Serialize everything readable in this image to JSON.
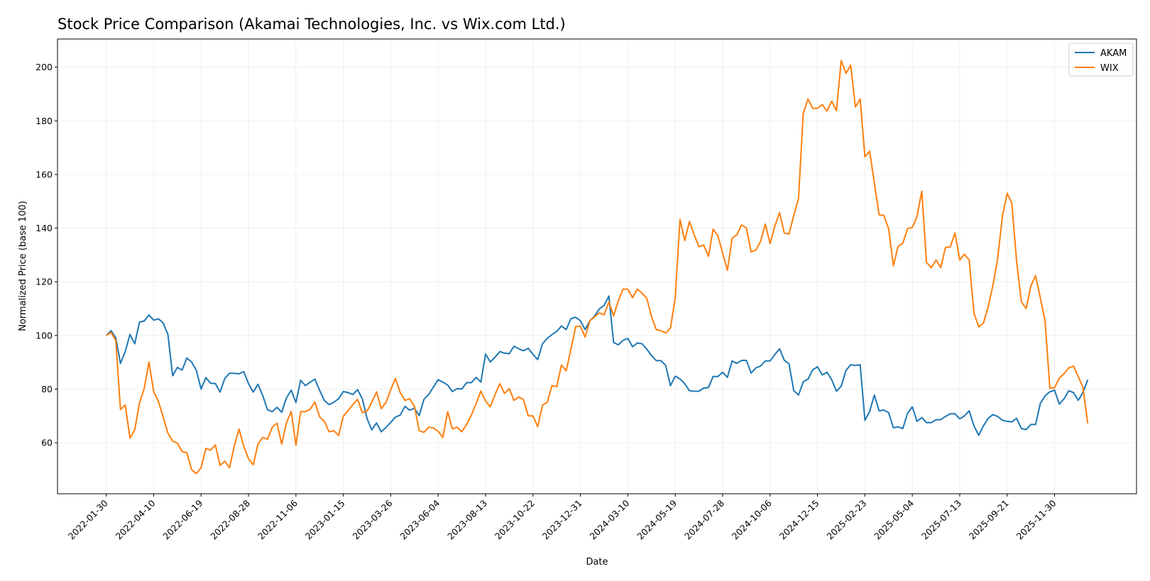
{
  "chart_data": {
    "type": "line",
    "title": "Stock Price Comparison (Akamai Technologies, Inc. vs Wix.com Ltd.)",
    "xlabel": "Date",
    "ylabel": "Normalized Price (base 100)",
    "xlim": [
      "2021-11-19",
      "2026-03-31"
    ],
    "ylim": [
      41,
      210.5
    ],
    "grid": true,
    "legend": "top-right",
    "x_ticks": [
      "2022-01-30",
      "2022-04-10",
      "2022-06-19",
      "2022-08-28",
      "2022-11-06",
      "2023-01-15",
      "2023-03-26",
      "2023-06-04",
      "2023-08-13",
      "2023-10-22",
      "2023-12-31",
      "2024-03-10",
      "2024-05-19",
      "2024-07-28",
      "2024-10-06",
      "2024-12-15",
      "2025-02-23",
      "2025-05-04",
      "2025-07-13",
      "2025-09-21",
      "2025-11-30"
    ],
    "y_ticks": [
      60,
      80,
      100,
      120,
      140,
      160,
      180,
      200
    ],
    "x": [
      "2022-01-30",
      "2022-02-06",
      "2022-02-13",
      "2022-02-20",
      "2022-02-27",
      "2022-03-06",
      "2022-03-13",
      "2022-03-20",
      "2022-03-27",
      "2022-04-03",
      "2022-04-10",
      "2022-04-17",
      "2022-04-24",
      "2022-05-01",
      "2022-05-08",
      "2022-05-15",
      "2022-05-22",
      "2022-05-29",
      "2022-06-05",
      "2022-06-12",
      "2022-06-19",
      "2022-06-26",
      "2022-07-03",
      "2022-07-10",
      "2022-07-17",
      "2022-07-24",
      "2022-07-31",
      "2022-08-07",
      "2022-08-14",
      "2022-08-21",
      "2022-08-28",
      "2022-09-04",
      "2022-09-11",
      "2022-09-18",
      "2022-09-25",
      "2022-10-02",
      "2022-10-09",
      "2022-10-16",
      "2022-10-23",
      "2022-10-30",
      "2022-11-06",
      "2022-11-13",
      "2022-11-20",
      "2022-11-27",
      "2022-12-04",
      "2022-12-11",
      "2022-12-18",
      "2022-12-25",
      "2023-01-01",
      "2023-01-08",
      "2023-01-15",
      "2023-01-22",
      "2023-01-29",
      "2023-02-05",
      "2023-02-12",
      "2023-02-19",
      "2023-02-26",
      "2023-03-05",
      "2023-03-12",
      "2023-03-19",
      "2023-03-26",
      "2023-04-02",
      "2023-04-09",
      "2023-04-16",
      "2023-04-23",
      "2023-04-30",
      "2023-05-07",
      "2023-05-14",
      "2023-05-21",
      "2023-05-28",
      "2023-06-04",
      "2023-06-11",
      "2023-06-18",
      "2023-06-25",
      "2023-07-02",
      "2023-07-09",
      "2023-07-16",
      "2023-07-23",
      "2023-07-30",
      "2023-08-06",
      "2023-08-13",
      "2023-08-20",
      "2023-08-27",
      "2023-09-03",
      "2023-09-10",
      "2023-09-17",
      "2023-09-24",
      "2023-10-01",
      "2023-10-08",
      "2023-10-15",
      "2023-10-22",
      "2023-10-29",
      "2023-11-05",
      "2023-11-12",
      "2023-11-19",
      "2023-11-26",
      "2023-12-03",
      "2023-12-10",
      "2023-12-17",
      "2023-12-24",
      "2023-12-31",
      "2024-01-07",
      "2024-01-14",
      "2024-01-21",
      "2024-01-28",
      "2024-02-04",
      "2024-02-11",
      "2024-02-18",
      "2024-02-25",
      "2024-03-03",
      "2024-03-10",
      "2024-03-17",
      "2024-03-24",
      "2024-03-31",
      "2024-04-07",
      "2024-04-14",
      "2024-04-21",
      "2024-04-28",
      "2024-05-05",
      "2024-05-12",
      "2024-05-19",
      "2024-05-26",
      "2024-06-02",
      "2024-06-09",
      "2024-06-16",
      "2024-06-23",
      "2024-06-30",
      "2024-07-07",
      "2024-07-14",
      "2024-07-21",
      "2024-07-28",
      "2024-08-04",
      "2024-08-11",
      "2024-08-18",
      "2024-08-25",
      "2024-09-01",
      "2024-09-08",
      "2024-09-15",
      "2024-09-22",
      "2024-09-29",
      "2024-10-06",
      "2024-10-13",
      "2024-10-20",
      "2024-10-27",
      "2024-11-03",
      "2024-11-10",
      "2024-11-17",
      "2024-11-24",
      "2024-12-01",
      "2024-12-08",
      "2024-12-15",
      "2024-12-22",
      "2024-12-29",
      "2025-01-05",
      "2025-01-12",
      "2025-01-19",
      "2025-01-26",
      "2025-02-02",
      "2025-02-09",
      "2025-02-16",
      "2025-02-23",
      "2025-03-02",
      "2025-03-09",
      "2025-03-16",
      "2025-03-23",
      "2025-03-30",
      "2025-04-06",
      "2025-04-13",
      "2025-04-20",
      "2025-04-27",
      "2025-05-04",
      "2025-05-11",
      "2025-05-18",
      "2025-05-25",
      "2025-06-01",
      "2025-06-08",
      "2025-06-15",
      "2025-06-22",
      "2025-06-29",
      "2025-07-06",
      "2025-07-13",
      "2025-07-20",
      "2025-07-27",
      "2025-08-03",
      "2025-08-10",
      "2025-08-17",
      "2025-08-24",
      "2025-08-31",
      "2025-09-07",
      "2025-09-14",
      "2025-09-21",
      "2025-09-28",
      "2025-10-05",
      "2025-10-12",
      "2025-10-19",
      "2025-10-26",
      "2025-11-02",
      "2025-11-09",
      "2025-11-16",
      "2025-11-23",
      "2025-11-30",
      "2025-12-07",
      "2025-12-14",
      "2025-12-21",
      "2025-12-28",
      "2026-01-04",
      "2026-01-11",
      "2026-01-18"
    ],
    "series": [
      {
        "name": "AKAM",
        "color": "#1f77b4",
        "values": [
          100.0,
          101.8,
          99.1,
          89.6,
          94.0,
          100.4,
          96.9,
          105.0,
          105.4,
          107.6,
          105.7,
          106.2,
          104.6,
          100.4,
          85.0,
          88.1,
          87.1,
          91.6,
          90.1,
          87.0,
          80.0,
          84.3,
          82.2,
          82.1,
          78.9,
          84.0,
          85.9,
          85.9,
          85.7,
          86.5,
          82.0,
          78.9,
          81.8,
          77.6,
          72.3,
          71.6,
          73.2,
          71.4,
          76.7,
          79.6,
          75.0,
          83.3,
          81.3,
          82.6,
          83.7,
          79.5,
          75.8,
          74.2,
          75.1,
          76.4,
          79.1,
          78.7,
          78.0,
          79.8,
          76.4,
          69.0,
          64.8,
          67.4,
          64.1,
          65.7,
          67.6,
          69.6,
          70.3,
          73.6,
          72.1,
          72.9,
          70.1,
          76.2,
          78.0,
          80.8,
          83.5,
          82.6,
          81.5,
          79.1,
          80.2,
          80.0,
          82.4,
          82.4,
          84.4,
          82.6,
          93.1,
          90.1,
          91.9,
          94.0,
          93.4,
          93.2,
          96.0,
          95.0,
          94.3,
          95.2,
          93.0,
          91.0,
          96.9,
          98.9,
          100.3,
          101.5,
          103.5,
          102.2,
          106.3,
          106.8,
          105.5,
          102.2,
          105.5,
          107.3,
          109.9,
          111.2,
          114.7,
          97.4,
          96.5,
          98.2,
          98.9,
          95.8,
          97.2,
          96.9,
          94.9,
          92.5,
          90.6,
          90.6,
          88.8,
          81.3,
          84.8,
          83.8,
          82.0,
          79.4,
          79.2,
          79.2,
          80.4,
          80.6,
          84.7,
          84.7,
          86.3,
          84.4,
          90.5,
          89.6,
          90.7,
          90.7,
          86.0,
          87.9,
          88.6,
          90.5,
          90.5,
          92.9,
          95.0,
          90.8,
          89.4,
          79.4,
          77.8,
          82.7,
          83.7,
          87.2,
          88.3,
          85.3,
          86.3,
          83.5,
          79.2,
          81.1,
          86.9,
          89.1,
          88.8,
          89.1,
          68.4,
          71.7,
          77.8,
          71.9,
          72.2,
          71.2,
          65.6,
          65.9,
          65.3,
          71.0,
          73.4,
          68.0,
          69.4,
          67.5,
          67.5,
          68.6,
          68.6,
          69.8,
          70.8,
          70.8,
          68.9,
          70.0,
          71.9,
          66.3,
          62.8,
          66.3,
          69.1,
          70.5,
          69.8,
          68.4,
          68.0,
          67.8,
          69.1,
          65.3,
          64.9,
          66.8,
          66.8,
          74.7,
          77.5,
          79.0,
          79.6,
          74.4,
          76.4,
          79.4,
          78.7,
          75.8,
          78.8,
          83.5
        ]
      },
      {
        "name": "WIX",
        "color": "#ff7f0e",
        "values": [
          100.0,
          101.1,
          98.2,
          72.4,
          74.1,
          61.7,
          64.8,
          74.9,
          80.2,
          90.1,
          79.0,
          75.4,
          69.6,
          63.6,
          60.6,
          59.9,
          56.7,
          56.3,
          50.0,
          48.5,
          50.7,
          57.9,
          57.3,
          59.2,
          51.6,
          53.1,
          50.7,
          58.8,
          65.1,
          58.6,
          54.0,
          51.8,
          59.5,
          62.0,
          61.3,
          65.8,
          67.3,
          59.5,
          67.4,
          71.7,
          59.1,
          71.6,
          71.6,
          72.5,
          75.2,
          69.6,
          68.0,
          64.1,
          64.5,
          62.7,
          69.9,
          72.0,
          74.2,
          76.2,
          71.2,
          71.8,
          75.1,
          79.0,
          72.7,
          75.1,
          79.8,
          84.0,
          78.7,
          75.8,
          76.4,
          73.6,
          64.5,
          63.9,
          65.8,
          65.5,
          64.3,
          62.0,
          71.6,
          65.2,
          65.8,
          64.1,
          66.8,
          70.3,
          74.6,
          79.3,
          75.5,
          73.4,
          78.0,
          82.0,
          78.4,
          80.2,
          75.8,
          77.1,
          76.0,
          70.0,
          70.0,
          66.0,
          74.0,
          75.1,
          81.3,
          80.9,
          89.0,
          86.8,
          94.9,
          103.3,
          103.5,
          99.4,
          105.5,
          107.0,
          108.4,
          107.7,
          112.5,
          107.3,
          113.0,
          117.3,
          117.2,
          114.1,
          117.3,
          115.7,
          113.9,
          107.0,
          102.2,
          101.8,
          100.9,
          102.8,
          114.0,
          143.2,
          135.4,
          142.5,
          137.5,
          133.1,
          133.7,
          129.5,
          139.6,
          137.2,
          130.7,
          124.3,
          136.3,
          137.5,
          141.2,
          140.0,
          131.2,
          131.8,
          135.0,
          141.5,
          134.2,
          140.8,
          145.8,
          138.2,
          137.8,
          144.8,
          151.1,
          182.8,
          188.1,
          184.7,
          184.7,
          186.1,
          183.6,
          187.3,
          183.8,
          202.5,
          197.7,
          200.8,
          185.2,
          188.1,
          166.6,
          168.7,
          156.8,
          145.0,
          144.8,
          139.8,
          126.0,
          133.2,
          134.4,
          139.8,
          140.3,
          144.3,
          153.8,
          127.2,
          125.3,
          128.1,
          125.3,
          132.8,
          133.0,
          138.2,
          128.1,
          130.3,
          128.1,
          108.4,
          103.2,
          104.6,
          110.7,
          118.7,
          128.6,
          144.5,
          153.0,
          149.2,
          127.6,
          112.6,
          110.0,
          118.4,
          122.3,
          114.0,
          105.5,
          80.4,
          80.5,
          84.1,
          85.8,
          87.9,
          88.6,
          84.7,
          80.6,
          67.2
        ]
      }
    ]
  }
}
